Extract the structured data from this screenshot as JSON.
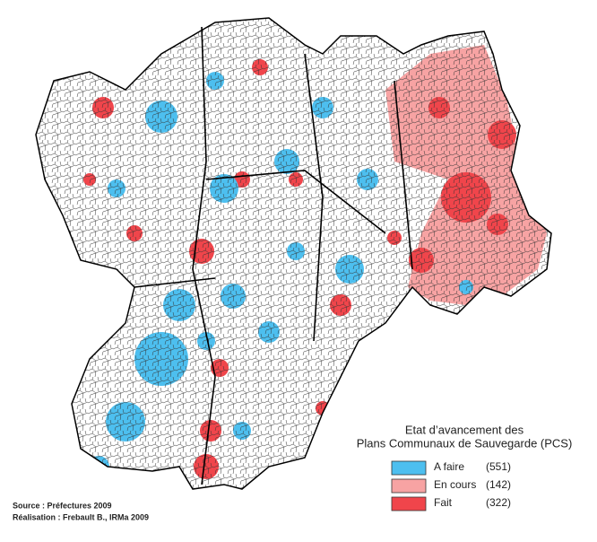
{
  "legend": {
    "title_lines": [
      "Etat d’avancement des",
      "Plans Communaux de Sauvegarde (PCS)"
    ],
    "items": [
      {
        "label": "A faire",
        "count": "(551)",
        "color": "#4dbfef"
      },
      {
        "label": "En cours",
        "count": "(142)",
        "color": "#f7a3a3"
      },
      {
        "label": "Fait",
        "count": "(322)",
        "color": "#f0454b"
      }
    ]
  },
  "footer": {
    "source": "Source : Préfectures 2009",
    "credit": "Réalisation : Frebault B., IRMa 2009"
  }
}
